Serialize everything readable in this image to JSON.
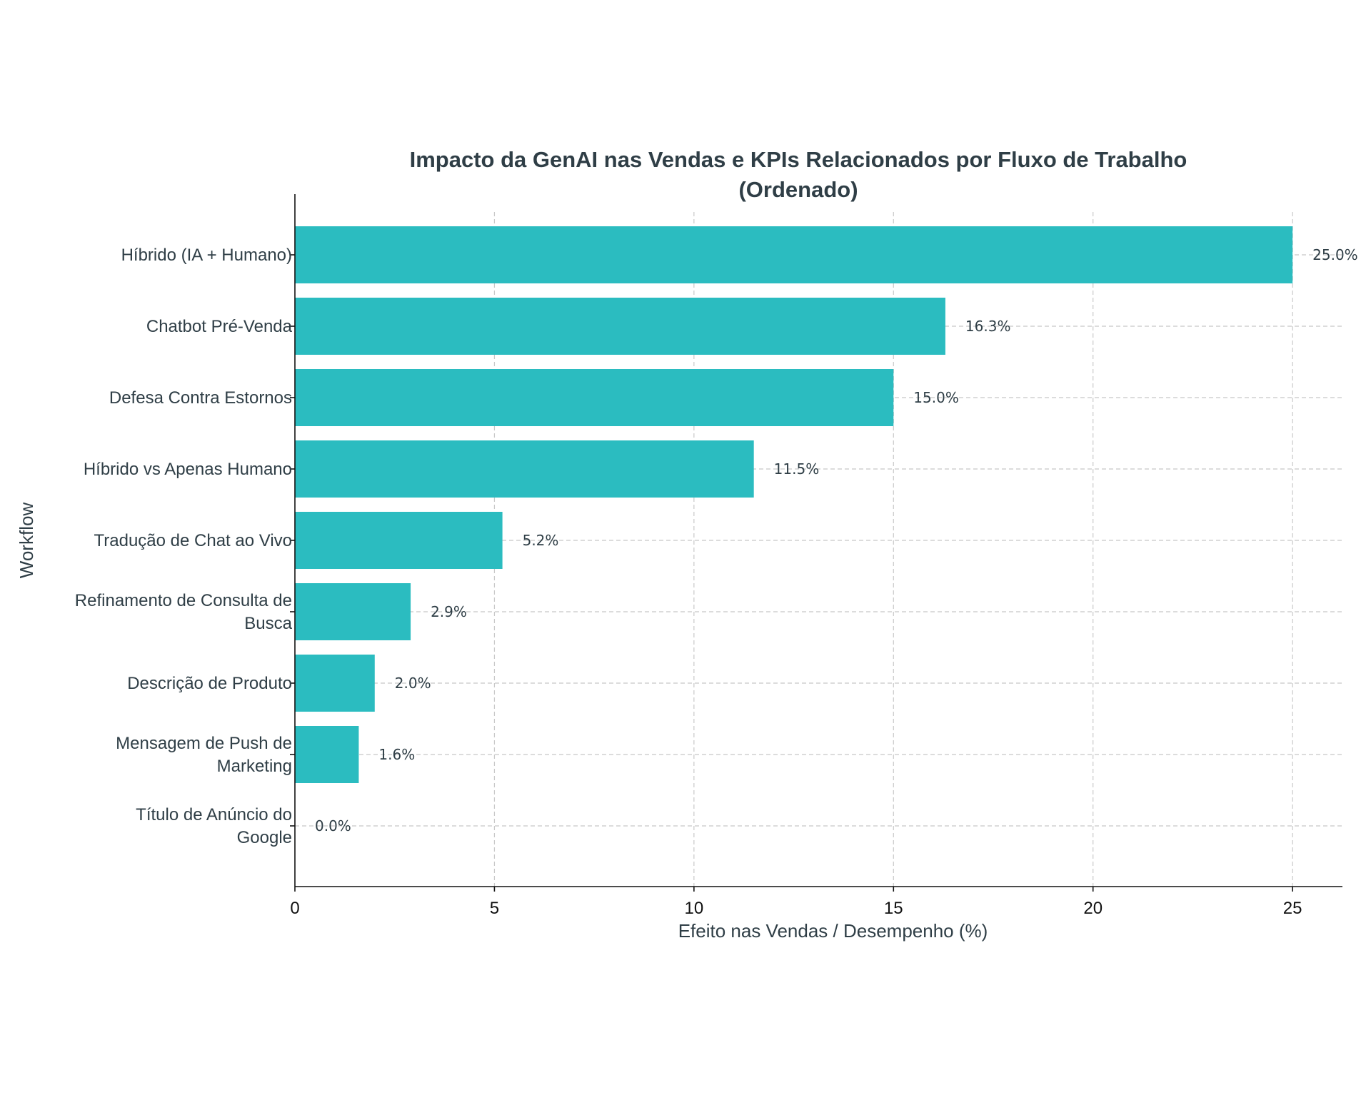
{
  "chart_data": {
    "type": "bar",
    "orientation": "horizontal",
    "title_lines": [
      "Impacto da GenAI nas Vendas e KPIs Relacionados por Fluxo de Trabalho",
      "(Ordenado)"
    ],
    "xlabel": "Efeito nas Vendas / Desempenho (%)",
    "ylabel": "Workflow",
    "xlim": [
      0,
      26.25
    ],
    "xticks": [
      0,
      5,
      10,
      15,
      20,
      25
    ],
    "grid": true,
    "bar_color": "#2bbcc0",
    "categories": [
      [
        "Híbrido (IA + Humano)"
      ],
      [
        "Chatbot Pré-Venda"
      ],
      [
        "Defesa Contra Estornos"
      ],
      [
        "Híbrido vs Apenas Humano"
      ],
      [
        "Tradução de Chat ao Vivo"
      ],
      [
        "Refinamento de Consulta de",
        "Busca"
      ],
      [
        "Descrição de Produto"
      ],
      [
        "Mensagem de Push de",
        "Marketing"
      ],
      [
        "Título de Anúncio do",
        "Google"
      ]
    ],
    "values": [
      25.0,
      16.3,
      15.0,
      11.5,
      5.2,
      2.9,
      2.0,
      1.6,
      0.0
    ],
    "data_labels": [
      "25.0%",
      "16.3%",
      "15.0%",
      "11.5%",
      "5.2%",
      "2.9%",
      "2.0%",
      "1.6%",
      "0.0%"
    ]
  }
}
